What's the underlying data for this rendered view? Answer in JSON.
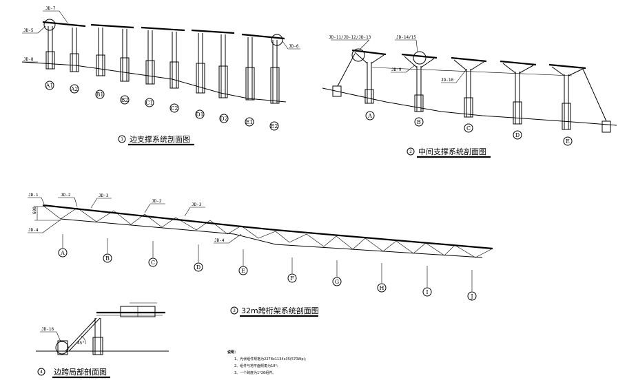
{
  "figure1": {
    "title": "边支撑系统剖面图",
    "number": "1",
    "labels": {
      "jd7": "JD-7",
      "jd5": "JD-5",
      "jd8": "JD-8",
      "jd6": "JD-6"
    },
    "axes": [
      "A1",
      "A2",
      "B1",
      "B2",
      "C1",
      "C2",
      "D1",
      "D2",
      "E1",
      "E2"
    ]
  },
  "figure2": {
    "title": "中间支撑系统剖面图",
    "number": "2",
    "labels": {
      "jd11": "JD-11/JD-12/JD-13",
      "jd14": "JD-14/15",
      "jd9": "JD-9",
      "jd10": "JD-10"
    },
    "axes": [
      "A",
      "B",
      "C",
      "D",
      "E"
    ]
  },
  "figure3": {
    "title": "32m跨桁架系统剖面图",
    "number": "3",
    "labels": {
      "jd1": "JD-1",
      "jd2a": "JD-2",
      "jd3a": "JD-3",
      "jd2b": "JD-2",
      "jd3b": "JD-3",
      "jd4a": "JD-4",
      "jd4b": "JD-4",
      "dim": "600"
    },
    "axes": [
      "A",
      "B",
      "C",
      "D",
      "E",
      "F",
      "G",
      "H",
      "I",
      "J"
    ]
  },
  "figure4": {
    "title": "边跨局部剖面图",
    "number": "4",
    "labels": {
      "jd16": "JD-16",
      "angle": "45°"
    }
  },
  "notes": {
    "heading": "说明：",
    "items": [
      "1、光伏组件规格为2278x1134x35(570Wp);",
      "2、组件与地平面倾角为18°;",
      "3、一个跨度为1*26组件。"
    ]
  }
}
